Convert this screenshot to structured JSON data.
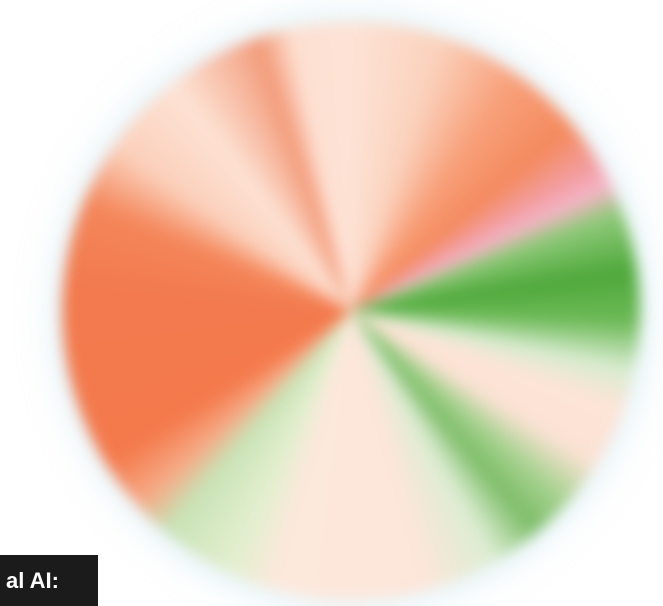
{
  "caption": {
    "text": "al AI:"
  }
}
